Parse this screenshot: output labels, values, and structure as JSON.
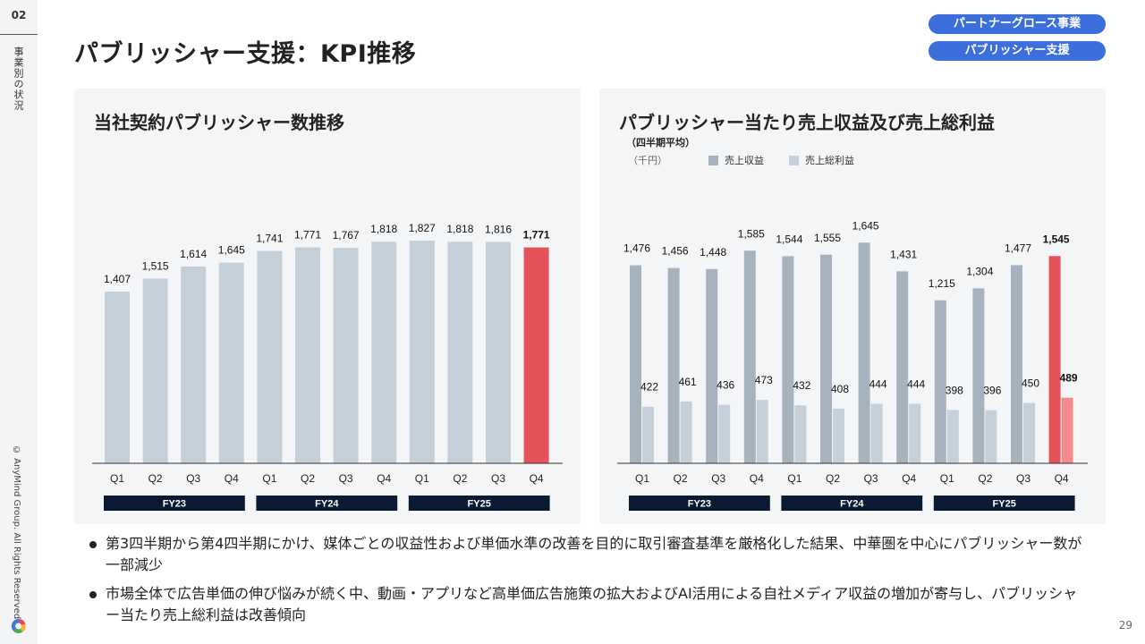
{
  "side": {
    "section_number": "02",
    "section_name": "事業別の状況",
    "copyright": "© AnyMind Group. All Rights Reserved."
  },
  "header": {
    "title": "パブリッシャー支援：KPI推移",
    "tags": [
      "パートナーグロース事業",
      "パブリッシャー支援"
    ]
  },
  "colors": {
    "bar_gray": "#c5cfd9",
    "bar_revenue": "#a6b2be",
    "bar_gross_profit": "#c6d0da",
    "highlight": "#e5525a",
    "highlight_light": "#f28b90",
    "fy_band": "#0b1a33",
    "tag_blue": "#3c6fdc"
  },
  "chart_data": [
    {
      "type": "bar",
      "title": "当社契約パブリッシャー数推移",
      "categories": [
        "Q1",
        "Q2",
        "Q3",
        "Q4",
        "Q1",
        "Q2",
        "Q3",
        "Q4",
        "Q1",
        "Q2",
        "Q3",
        "Q4"
      ],
      "fiscal_years": [
        {
          "label": "FY23",
          "span": [
            0,
            3
          ]
        },
        {
          "label": "FY24",
          "span": [
            4,
            7
          ]
        },
        {
          "label": "FY25",
          "span": [
            8,
            11
          ]
        }
      ],
      "values": [
        1407,
        1515,
        1614,
        1645,
        1741,
        1771,
        1767,
        1818,
        1827,
        1818,
        1816,
        1771
      ],
      "value_labels": [
        "1,407",
        "1,515",
        "1,614",
        "1,645",
        "1,741",
        "1,771",
        "1,767",
        "1,818",
        "1,827",
        "1,818",
        "1,816",
        "1,771"
      ],
      "highlight_index": 11,
      "ylim": [
        0,
        2100
      ],
      "xlabel": "",
      "ylabel": "",
      "grid": false
    },
    {
      "type": "bar",
      "title": "パブリッシャー当たり売上収益及び売上総利益",
      "subtitle": "（四半期平均）",
      "unit": "（千円）",
      "categories": [
        "Q1",
        "Q2",
        "Q3",
        "Q4",
        "Q1",
        "Q2",
        "Q3",
        "Q4",
        "Q1",
        "Q2",
        "Q3",
        "Q4"
      ],
      "fiscal_years": [
        {
          "label": "FY23",
          "span": [
            0,
            3
          ]
        },
        {
          "label": "FY24",
          "span": [
            4,
            7
          ]
        },
        {
          "label": "FY25",
          "span": [
            8,
            11
          ]
        }
      ],
      "series": [
        {
          "name": "売上収益",
          "values": [
            1476,
            1456,
            1448,
            1585,
            1544,
            1555,
            1645,
            1431,
            1215,
            1304,
            1477,
            1545
          ],
          "value_labels": [
            "1,476",
            "1,456",
            "1,448",
            "1,585",
            "1,544",
            "1,555",
            "1,645",
            "1,431",
            "1,215",
            "1,304",
            "1,477",
            "1,545"
          ]
        },
        {
          "name": "売上総利益",
          "values": [
            422,
            461,
            436,
            473,
            432,
            408,
            444,
            444,
            398,
            396,
            450,
            489
          ],
          "value_labels": [
            "422",
            "461",
            "436",
            "473",
            "432",
            "408",
            "444",
            "444",
            "398",
            "396",
            "450",
            "489"
          ]
        }
      ],
      "legend": "top-left",
      "highlight_index": 11,
      "ylim": [
        0,
        1900
      ],
      "xlabel": "",
      "ylabel": "",
      "grid": false
    }
  ],
  "bullets": [
    "第3四半期から第4四半期にかけ、媒体ごとの収益性および単価水準の改善を目的に取引審査基準を厳格化した結果、中華圏を中心にパブリッシャー数が一部減少",
    "市場全体で広告単価の伸び悩みが続く中、動画・アプリなど高単価広告施策の拡大およびAI活用による自社メディア収益の増加が寄与し、パブリッシャー当たり売上総利益は改善傾向"
  ],
  "page_number": "29"
}
